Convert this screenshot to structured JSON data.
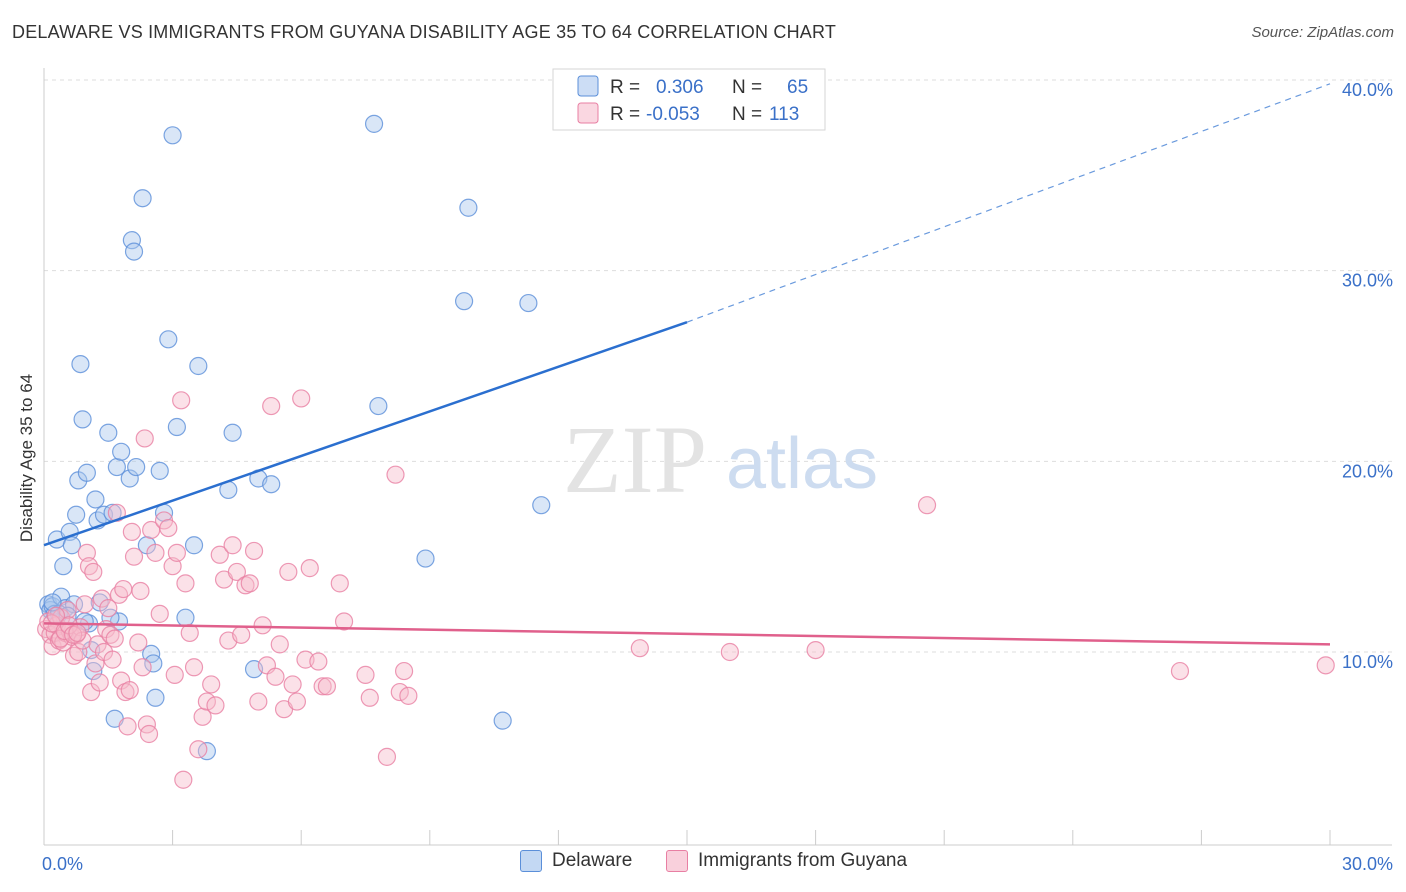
{
  "title": "DELAWARE VS IMMIGRANTS FROM GUYANA DISABILITY AGE 35 TO 64 CORRELATION CHART",
  "source": "Source: ZipAtlas.com",
  "watermark": {
    "zip": "ZIP",
    "atlas": "atlas"
  },
  "colors": {
    "blue": "#5b8fd9",
    "blue_fill": "#aac7ee",
    "blue_line": "#2b6fcf",
    "pink": "#e87fa3",
    "pink_fill": "#f6bccd",
    "pink_line": "#e0608c",
    "axis_text": "#3a70c8",
    "grid": "#dddddd"
  },
  "stats": [
    {
      "series": "Delaware",
      "r_label": "R =",
      "r_value": "0.306",
      "n_label": "N =",
      "n_value": "65"
    },
    {
      "series": "Immigrants from Guyana",
      "r_label": "R =",
      "r_value": "-0.053",
      "n_label": "N =",
      "n_value": "113"
    }
  ],
  "chart_data": {
    "type": "scatter",
    "title": "DELAWARE VS IMMIGRANTS FROM GUYANA DISABILITY AGE 35 TO 64 CORRELATION CHART",
    "xlabel": "",
    "ylabel": "Disability Age 35 to 64",
    "xlim": [
      0,
      30
    ],
    "ylim": [
      0,
      40
    ],
    "x_tick_labels": [
      "0.0%",
      "30.0%"
    ],
    "y_ticks": [
      10,
      20,
      30,
      40
    ],
    "y_tick_labels": [
      "10.0%",
      "20.0%",
      "30.0%",
      "40.0%"
    ],
    "legend": [
      "Delaware",
      "Immigrants from Guyana"
    ],
    "series": [
      {
        "name": "Delaware",
        "r": 0.306,
        "n": 65,
        "trend": {
          "x0": 0,
          "y0": 15.6,
          "x1": 15,
          "y1": 27.3,
          "dash_to_x": 30,
          "dash_to_y": 39.8
        },
        "points": [
          [
            0.1,
            12.5
          ],
          [
            0.15,
            12.2
          ],
          [
            0.2,
            12.4
          ],
          [
            0.25,
            12.0
          ],
          [
            0.3,
            15.9
          ],
          [
            0.4,
            12.9
          ],
          [
            0.45,
            14.5
          ],
          [
            0.5,
            12.3
          ],
          [
            0.6,
            16.3
          ],
          [
            0.65,
            15.6
          ],
          [
            0.7,
            12.5
          ],
          [
            0.75,
            17.2
          ],
          [
            0.8,
            19.0
          ],
          [
            0.85,
            25.1
          ],
          [
            0.9,
            22.2
          ],
          [
            1.0,
            19.4
          ],
          [
            1.05,
            11.5
          ],
          [
            1.1,
            10.1
          ],
          [
            1.15,
            9.0
          ],
          [
            1.2,
            18.0
          ],
          [
            1.25,
            16.9
          ],
          [
            1.4,
            17.2
          ],
          [
            1.5,
            21.5
          ],
          [
            1.6,
            17.3
          ],
          [
            1.65,
            6.5
          ],
          [
            1.7,
            19.7
          ],
          [
            1.75,
            11.6
          ],
          [
            1.8,
            20.5
          ],
          [
            2.0,
            19.1
          ],
          [
            2.05,
            31.6
          ],
          [
            2.1,
            31.0
          ],
          [
            2.15,
            19.7
          ],
          [
            2.3,
            33.8
          ],
          [
            2.4,
            15.6
          ],
          [
            2.5,
            9.9
          ],
          [
            2.55,
            9.4
          ],
          [
            2.6,
            7.6
          ],
          [
            2.7,
            19.5
          ],
          [
            2.8,
            17.3
          ],
          [
            2.9,
            26.4
          ],
          [
            3.0,
            37.1
          ],
          [
            3.1,
            21.8
          ],
          [
            3.3,
            11.8
          ],
          [
            3.5,
            15.6
          ],
          [
            3.6,
            25.0
          ],
          [
            3.8,
            4.8
          ],
          [
            4.3,
            18.5
          ],
          [
            4.4,
            21.5
          ],
          [
            4.9,
            9.1
          ],
          [
            5.0,
            19.1
          ],
          [
            5.3,
            18.8
          ],
          [
            7.7,
            37.7
          ],
          [
            7.8,
            22.9
          ],
          [
            8.9,
            14.9
          ],
          [
            9.8,
            28.4
          ],
          [
            9.9,
            33.3
          ],
          [
            10.7,
            6.4
          ],
          [
            11.3,
            28.3
          ],
          [
            11.6,
            17.7
          ],
          [
            0.35,
            12.0
          ],
          [
            1.3,
            12.6
          ],
          [
            0.55,
            11.9
          ],
          [
            0.2,
            12.6
          ],
          [
            0.95,
            11.6
          ],
          [
            1.55,
            11.8
          ]
        ]
      },
      {
        "name": "Immigrants from Guyana",
        "r": -0.053,
        "n": 113,
        "trend": {
          "x0": 0,
          "y0": 11.5,
          "x1": 30,
          "y1": 10.4
        },
        "points": [
          [
            0.05,
            11.2
          ],
          [
            0.1,
            11.6
          ],
          [
            0.15,
            10.9
          ],
          [
            0.2,
            10.3
          ],
          [
            0.25,
            11.0
          ],
          [
            0.3,
            11.4
          ],
          [
            0.35,
            10.6
          ],
          [
            0.4,
            11.8
          ],
          [
            0.45,
            10.5
          ],
          [
            0.5,
            11.0
          ],
          [
            0.55,
            12.2
          ],
          [
            0.6,
            11.1
          ],
          [
            0.65,
            10.8
          ],
          [
            0.7,
            9.8
          ],
          [
            0.75,
            10.9
          ],
          [
            0.8,
            10.0
          ],
          [
            0.85,
            11.3
          ],
          [
            0.9,
            10.6
          ],
          [
            0.95,
            12.5
          ],
          [
            1.0,
            15.2
          ],
          [
            1.05,
            14.5
          ],
          [
            1.1,
            7.9
          ],
          [
            1.15,
            14.2
          ],
          [
            1.2,
            9.4
          ],
          [
            1.25,
            10.4
          ],
          [
            1.3,
            8.4
          ],
          [
            1.35,
            12.8
          ],
          [
            1.4,
            10.0
          ],
          [
            1.45,
            11.2
          ],
          [
            1.5,
            12.3
          ],
          [
            1.55,
            10.9
          ],
          [
            1.6,
            9.6
          ],
          [
            1.65,
            10.7
          ],
          [
            1.7,
            17.3
          ],
          [
            1.75,
            13.0
          ],
          [
            1.8,
            8.5
          ],
          [
            1.85,
            13.3
          ],
          [
            1.9,
            7.9
          ],
          [
            1.95,
            6.1
          ],
          [
            2.0,
            8.0
          ],
          [
            2.05,
            16.3
          ],
          [
            2.1,
            15.0
          ],
          [
            2.2,
            10.5
          ],
          [
            2.25,
            13.2
          ],
          [
            2.3,
            9.2
          ],
          [
            2.35,
            21.2
          ],
          [
            2.4,
            6.2
          ],
          [
            2.45,
            5.7
          ],
          [
            2.5,
            16.4
          ],
          [
            2.6,
            15.2
          ],
          [
            2.7,
            12.0
          ],
          [
            2.8,
            16.9
          ],
          [
            2.9,
            16.5
          ],
          [
            3.0,
            14.5
          ],
          [
            3.05,
            8.8
          ],
          [
            3.1,
            15.2
          ],
          [
            3.2,
            23.2
          ],
          [
            3.25,
            3.3
          ],
          [
            3.3,
            13.6
          ],
          [
            3.4,
            11.0
          ],
          [
            3.5,
            9.2
          ],
          [
            3.6,
            4.9
          ],
          [
            3.7,
            6.6
          ],
          [
            3.8,
            7.4
          ],
          [
            3.9,
            8.3
          ],
          [
            4.0,
            7.2
          ],
          [
            4.1,
            15.1
          ],
          [
            4.2,
            13.8
          ],
          [
            4.3,
            10.6
          ],
          [
            4.4,
            15.6
          ],
          [
            4.5,
            14.2
          ],
          [
            4.6,
            10.9
          ],
          [
            4.7,
            13.5
          ],
          [
            4.8,
            13.6
          ],
          [
            4.9,
            15.3
          ],
          [
            5.0,
            7.4
          ],
          [
            5.1,
            11.4
          ],
          [
            5.2,
            9.3
          ],
          [
            5.3,
            22.9
          ],
          [
            5.4,
            8.7
          ],
          [
            5.5,
            10.4
          ],
          [
            5.6,
            7.0
          ],
          [
            5.7,
            14.2
          ],
          [
            5.8,
            8.3
          ],
          [
            5.9,
            7.4
          ],
          [
            6.0,
            23.3
          ],
          [
            6.1,
            9.6
          ],
          [
            6.2,
            14.4
          ],
          [
            6.4,
            9.5
          ],
          [
            6.5,
            8.2
          ],
          [
            6.6,
            8.2
          ],
          [
            6.9,
            13.6
          ],
          [
            7.0,
            11.6
          ],
          [
            7.5,
            8.8
          ],
          [
            7.6,
            7.6
          ],
          [
            8.0,
            4.5
          ],
          [
            8.2,
            19.3
          ],
          [
            8.3,
            7.9
          ],
          [
            8.4,
            9.0
          ],
          [
            8.5,
            7.7
          ],
          [
            13.9,
            10.2
          ],
          [
            16.0,
            10.0
          ],
          [
            18.0,
            10.1
          ],
          [
            20.6,
            17.7
          ],
          [
            26.5,
            9.0
          ],
          [
            29.9,
            9.3
          ],
          [
            0.18,
            11.5
          ],
          [
            0.28,
            11.9
          ],
          [
            0.38,
            10.7
          ],
          [
            0.48,
            11.1
          ],
          [
            0.58,
            11.4
          ],
          [
            0.68,
            10.9
          ],
          [
            0.78,
            11.0
          ]
        ]
      }
    ]
  }
}
